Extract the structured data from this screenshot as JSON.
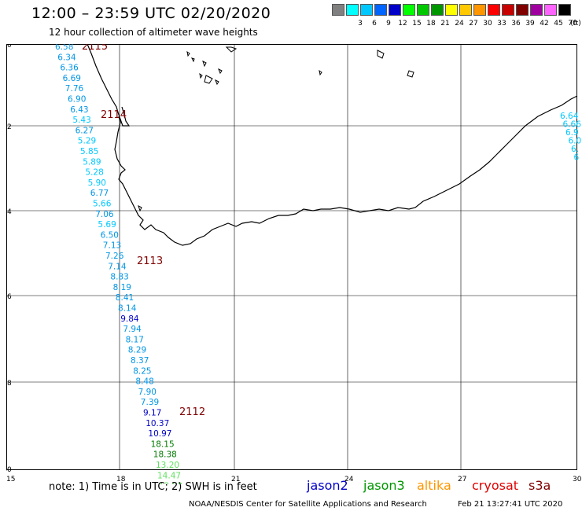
{
  "title": "12:00 – 23:59 UTC 02/20/2020",
  "subtitle": "12 hour collection of altimeter wave heights",
  "legend": {
    "unit": "(ft)",
    "entries": [
      {
        "label": "",
        "color": "#808080"
      },
      {
        "label": "3",
        "color": "#00ffff"
      },
      {
        "label": "6",
        "color": "#00c8ff"
      },
      {
        "label": "9",
        "color": "#0064ff"
      },
      {
        "label": "12",
        "color": "#0000c8"
      },
      {
        "label": "15",
        "color": "#00ff00"
      },
      {
        "label": "18",
        "color": "#00c800"
      },
      {
        "label": "21",
        "color": "#009600"
      },
      {
        "label": "24",
        "color": "#ffff00"
      },
      {
        "label": "27",
        "color": "#ffc800"
      },
      {
        "label": "30",
        "color": "#ff9600"
      },
      {
        "label": "33",
        "color": "#ff0000"
      },
      {
        "label": "36",
        "color": "#c80000"
      },
      {
        "label": "39",
        "color": "#800000"
      },
      {
        "label": "42",
        "color": "#a000a0"
      },
      {
        "label": "45",
        "color": "#ff64ff"
      },
      {
        "label": "70",
        "color": "#000000"
      }
    ]
  },
  "axes": {
    "lat_labels": [
      "-30",
      "-32",
      "-34",
      "-36",
      "-38",
      "-40"
    ],
    "lon_labels": [
      "15",
      "18",
      "21",
      "24",
      "27",
      "30"
    ]
  },
  "passes": [
    {
      "id": "2115",
      "color": "#800000"
    },
    {
      "id": "2114",
      "color": "#800000"
    },
    {
      "id": "2113",
      "color": "#800000"
    },
    {
      "id": "2112",
      "color": "#800000"
    }
  ],
  "wave_readings_west": [
    "6.58",
    "6.34",
    "6.36",
    "6.69",
    "7.76",
    "6.90",
    "6.43",
    "5.43",
    "6.27",
    "5.29",
    "5.85",
    "5.89",
    "5.28",
    "5.90",
    "6.77",
    "5.66",
    "7.06",
    "5.69",
    "6.50",
    "7.13",
    "7.26",
    "7.14",
    "8.83",
    "8.19",
    "8.41",
    "8.14",
    "9.84",
    "7.94",
    "8.17",
    "8.29",
    "8.37",
    "8.25",
    "8.48",
    "7.90",
    "7.39",
    "9.17",
    "10.37",
    "10.97",
    "18.15",
    "18.38",
    "13.20",
    "14.47",
    "12.80"
  ],
  "wave_readings_east": [
    "6.64",
    "6.66",
    "6.9",
    "6.0",
    "6.",
    "6"
  ],
  "note": "note: 1) Time is in UTC; 2) SWH is in feet",
  "satellites": [
    {
      "name": "jason2",
      "color": "#0000c8"
    },
    {
      "name": "jason3",
      "color": "#009600"
    },
    {
      "name": "altika",
      "color": "#ff9600"
    },
    {
      "name": "cryosat",
      "color": "#e00000"
    },
    {
      "name": "s3a",
      "color": "#800000"
    }
  ],
  "credit": "NOAA/NESDIS Center for Satellite Applications and Research",
  "timestamp": "Feb 21 13:27:41 UTC 2020"
}
